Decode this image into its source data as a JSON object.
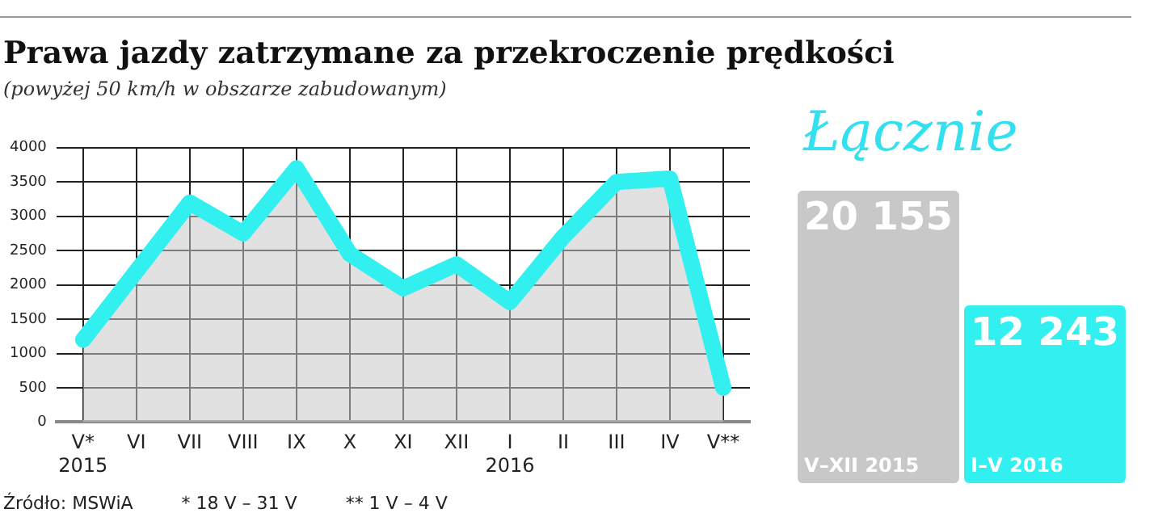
{
  "chart_data": [
    {
      "type": "area",
      "title": "Prawa jazdy zatrzymane za przekroczenie prędkości",
      "subtitle": "(powyżej 50 km/h w obszarze zabudowanym)",
      "categories": [
        "V*\n2015",
        "VI",
        "VII",
        "VIII",
        "IX",
        "X",
        "XI",
        "XII",
        "I\n2016",
        "II",
        "III",
        "IV",
        "V**"
      ],
      "series": [
        {
          "color": "#33f0f0",
          "values": [
            1200,
            2200,
            3200,
            2750,
            3700,
            2450,
            1950,
            2300,
            1750,
            2700,
            3500,
            3550,
            500
          ]
        }
      ],
      "ylim": [
        0,
        4000
      ],
      "yticks": [
        0,
        500,
        1000,
        1500,
        2000,
        2500,
        3000,
        3500,
        4000
      ],
      "grid": true,
      "marker": "none",
      "line_style": "solid",
      "annotations": [
        "Źródło: MSWiA",
        "* 18 V – 31 V",
        "** 1 V – 4 V"
      ]
    },
    {
      "type": "bar",
      "title": "Łącznie",
      "categories": [
        "V–XII 2015",
        "I–V 2016"
      ],
      "values": [
        20155,
        12243
      ],
      "colors": [
        "#c8c8c8",
        "#33f0f0"
      ],
      "value_labels": [
        "20 155",
        "12 243"
      ]
    }
  ]
}
